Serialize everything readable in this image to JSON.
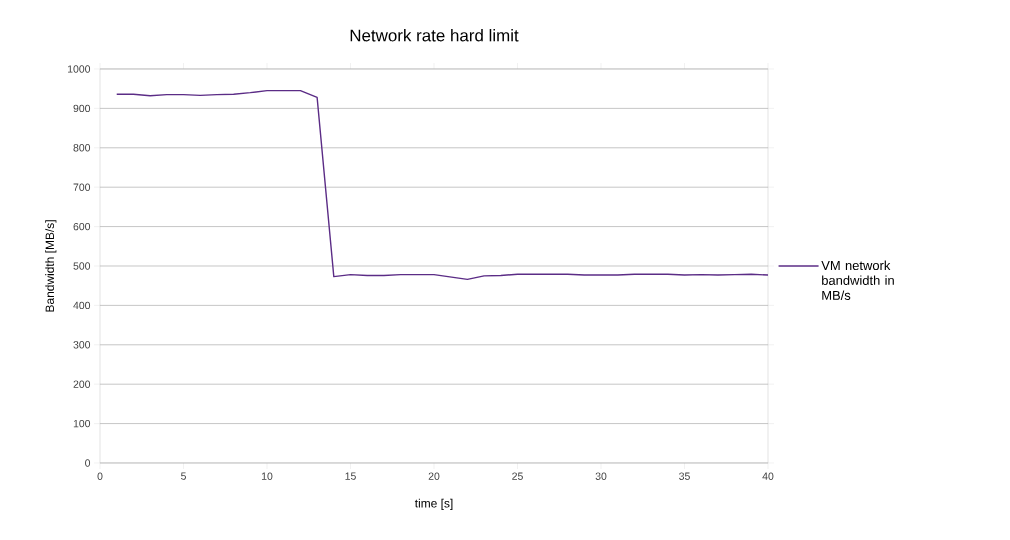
{
  "chart_data": {
    "type": "line",
    "title": "Network rate hard limit",
    "xlabel": "time [s]",
    "ylabel": "Bandwidth [MB/s]",
    "x": [
      1,
      2,
      3,
      4,
      5,
      6,
      7,
      8,
      9,
      10,
      11,
      12,
      13,
      14,
      15,
      16,
      17,
      18,
      19,
      20,
      21,
      22,
      23,
      24,
      25,
      26,
      27,
      28,
      29,
      30,
      31,
      32,
      33,
      34,
      35,
      36,
      37,
      38,
      39,
      40
    ],
    "series": [
      {
        "name": "VM network bandwidth in MB/s",
        "color": "#5b2c86",
        "values": [
          936,
          936,
          932,
          935,
          935,
          933,
          935,
          936,
          940,
          945,
          945,
          945,
          928,
          473,
          478,
          476,
          476,
          478,
          478,
          478,
          472,
          466,
          475,
          476,
          479,
          479,
          479,
          479,
          477,
          477,
          477,
          479,
          479,
          479,
          477,
          478,
          477,
          478,
          479,
          477
        ]
      }
    ],
    "xlim": [
      0,
      40
    ],
    "xticks": [
      0,
      5,
      10,
      15,
      20,
      25,
      30,
      35,
      40
    ],
    "ylim": [
      0,
      1000
    ],
    "yticks": [
      0,
      100,
      200,
      300,
      400,
      500,
      600,
      700,
      800,
      900,
      1000
    ],
    "grid": "y",
    "legend": "right",
    "marker": "none",
    "line_style": "solid"
  }
}
